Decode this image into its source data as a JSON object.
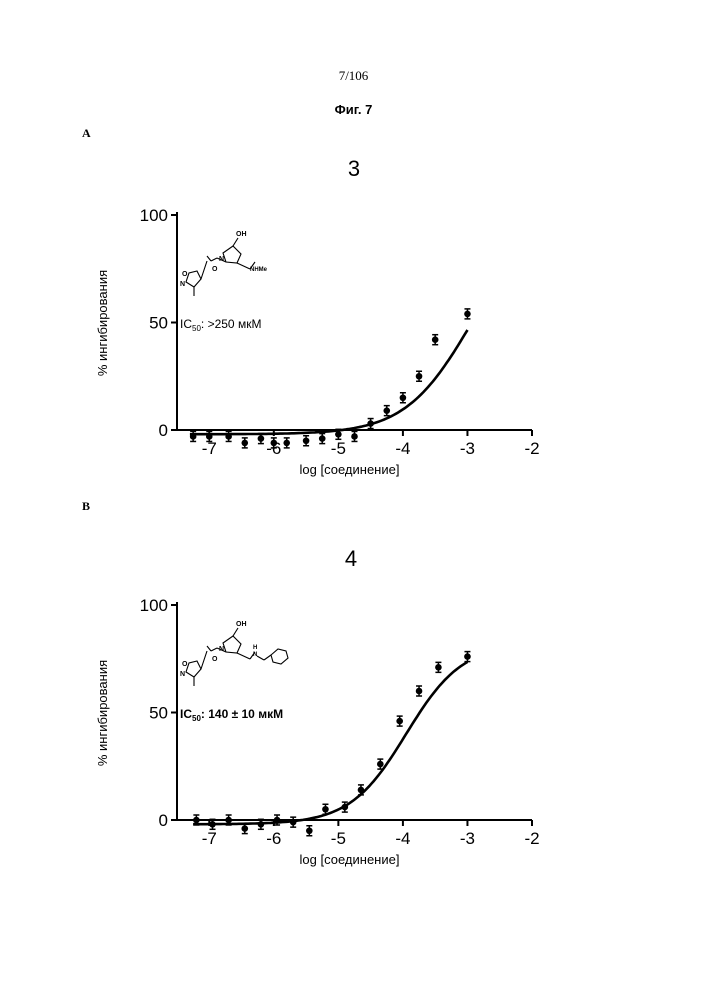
{
  "page": {
    "number": "7/106",
    "figure_title": "Фиг. 7"
  },
  "panels": [
    {
      "letter": "A",
      "compound": "3",
      "ic50_prefix": "IC",
      "ic50_sub": "50",
      "ic50_value": ": >250 мкМ"
    },
    {
      "letter": "B",
      "compound": "4",
      "ic50_prefix": "IC",
      "ic50_sub": "50",
      "ic50_value": ": 140 ± 10 мкМ"
    }
  ],
  "structure_labels": {
    "oh": "OH",
    "n_ring": "N",
    "o_carbonyl": "O",
    "amide_nme": "NHMe",
    "amide_n": "N",
    "amide_h": "H",
    "isoxazole_o": "O",
    "isoxazole_n": "N"
  },
  "chart_data": [
    {
      "type": "scatter",
      "title": "3",
      "xlabel": "log [соединение]",
      "ylabel": "% ингибирования",
      "xlim": [
        -7.5,
        -2
      ],
      "ylim": [
        0,
        100
      ],
      "x_ticks": [
        -7,
        -6,
        -5,
        -4,
        -3,
        -2
      ],
      "x_tick_labels": [
        "-7",
        "-6",
        "-5",
        "-4",
        "-3",
        "-2"
      ],
      "y_ticks": [
        0,
        50,
        100
      ],
      "y_tick_labels": [
        "0",
        "50",
        "100"
      ],
      "points": [
        {
          "x": -7.25,
          "y": -3
        },
        {
          "x": -7.0,
          "y": -3
        },
        {
          "x": -6.7,
          "y": -3
        },
        {
          "x": -6.45,
          "y": -6
        },
        {
          "x": -6.2,
          "y": -4
        },
        {
          "x": -6.0,
          "y": -6
        },
        {
          "x": -5.8,
          "y": -6
        },
        {
          "x": -5.5,
          "y": -5
        },
        {
          "x": -5.25,
          "y": -4
        },
        {
          "x": -5.0,
          "y": -2
        },
        {
          "x": -4.75,
          "y": -3
        },
        {
          "x": -4.5,
          "y": 3
        },
        {
          "x": -4.25,
          "y": 9
        },
        {
          "x": -4.0,
          "y": 15
        },
        {
          "x": -3.75,
          "y": 25
        },
        {
          "x": -3.5,
          "y": 42
        },
        {
          "x": -3.0,
          "y": 54
        }
      ],
      "fit_curve": {
        "bottom": -2,
        "top": 100,
        "log_ic50": -2.95,
        "hill": 0.85
      }
    },
    {
      "type": "scatter",
      "title": "4",
      "xlabel": "log [соединение]",
      "ylabel": "% ингибирования",
      "xlim": [
        -7.5,
        -2
      ],
      "ylim": [
        0,
        100
      ],
      "x_ticks": [
        -7,
        -6,
        -5,
        -4,
        -3,
        -2
      ],
      "x_tick_labels": [
        "-7",
        "-6",
        "-5",
        "-4",
        "-3",
        "-2"
      ],
      "y_ticks": [
        0,
        50,
        100
      ],
      "y_tick_labels": [
        "0",
        "50",
        "100"
      ],
      "points": [
        {
          "x": -7.2,
          "y": 0
        },
        {
          "x": -6.95,
          "y": -2
        },
        {
          "x": -6.7,
          "y": 0
        },
        {
          "x": -6.45,
          "y": -4
        },
        {
          "x": -6.2,
          "y": -2
        },
        {
          "x": -5.95,
          "y": 0
        },
        {
          "x": -5.7,
          "y": -1
        },
        {
          "x": -5.45,
          "y": -5
        },
        {
          "x": -5.2,
          "y": 5
        },
        {
          "x": -4.9,
          "y": 6
        },
        {
          "x": -4.65,
          "y": 14
        },
        {
          "x": -4.35,
          "y": 26
        },
        {
          "x": -4.05,
          "y": 46
        },
        {
          "x": -3.75,
          "y": 60
        },
        {
          "x": -3.45,
          "y": 71
        },
        {
          "x": -3.0,
          "y": 76
        }
      ],
      "fit_curve": {
        "bottom": -2,
        "top": 82,
        "log_ic50": -3.95,
        "hill": 1.0
      }
    }
  ]
}
